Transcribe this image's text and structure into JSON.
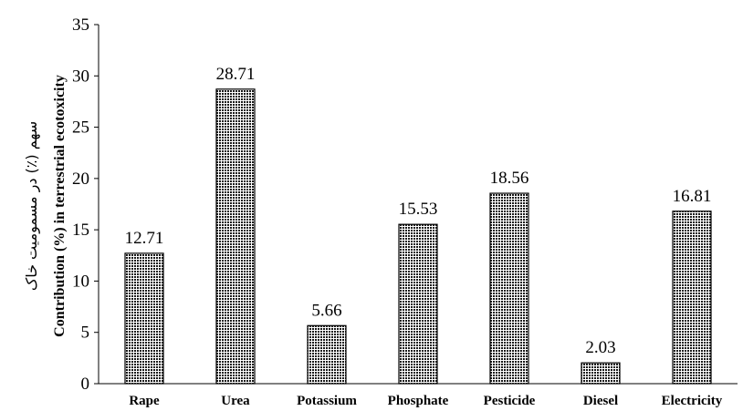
{
  "chart_data": {
    "type": "bar",
    "categories": [
      "Rape",
      "Urea",
      "Potassium",
      "Phosphate",
      "Pesticide",
      "Diesel",
      "Electricity"
    ],
    "values": [
      12.71,
      28.71,
      5.66,
      15.53,
      18.56,
      2.03,
      16.81
    ],
    "data_labels": [
      "12.71",
      "28.71",
      "5.66",
      "15.53",
      "18.56",
      "2.03",
      "16.81"
    ],
    "ylabel_en": "Contribution (%) in terrestrial ecotoxicity",
    "ylabel_fa": "سهم (٪) در مسمومیت خاک",
    "ylim": [
      0,
      35
    ],
    "yticks": [
      0,
      5,
      10,
      15,
      20,
      25,
      30,
      35
    ],
    "grid": false,
    "bar_pattern": "dense dotted dark fill with black outline"
  }
}
